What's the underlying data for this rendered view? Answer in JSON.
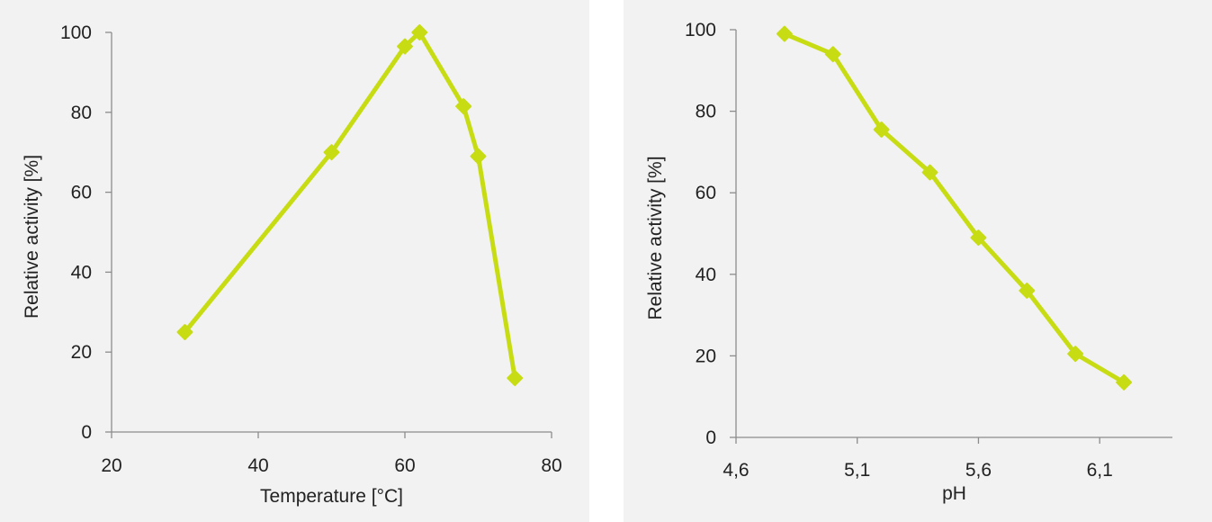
{
  "chart_data": [
    {
      "type": "line",
      "title": "",
      "xlabel": "Temperature [°C]",
      "ylabel": "Relative activity [%]",
      "xlim": [
        20,
        80
      ],
      "ylim": [
        0,
        100
      ],
      "xticks": [
        "20",
        "40",
        "60",
        "80"
      ],
      "yticks": [
        "0",
        "20",
        "40",
        "60",
        "80",
        "100"
      ],
      "grid": false,
      "series": [
        {
          "color": "#c8dc14",
          "marker": "diamond",
          "x": [
            30,
            50,
            60,
            62,
            68,
            70,
            75
          ],
          "y": [
            25,
            70,
            96.5,
            100,
            81.5,
            69,
            13.5
          ]
        }
      ]
    },
    {
      "type": "line",
      "title": "",
      "xlabel": "pH",
      "ylabel": "Relative activity [%]",
      "xlim": [
        4.6,
        6.4
      ],
      "ylim": [
        0,
        100
      ],
      "xticks": [
        "4,6",
        "5,1",
        "5,6",
        "6,1"
      ],
      "yticks": [
        "0",
        "20",
        "40",
        "60",
        "80",
        "100"
      ],
      "grid": false,
      "series": [
        {
          "color": "#c8dc14",
          "marker": "diamond",
          "x": [
            4.8,
            5.0,
            5.2,
            5.4,
            5.6,
            5.8,
            6.0,
            6.2
          ],
          "y": [
            99,
            94,
            75.5,
            65,
            49,
            36,
            20.5,
            13.5
          ]
        }
      ]
    }
  ]
}
